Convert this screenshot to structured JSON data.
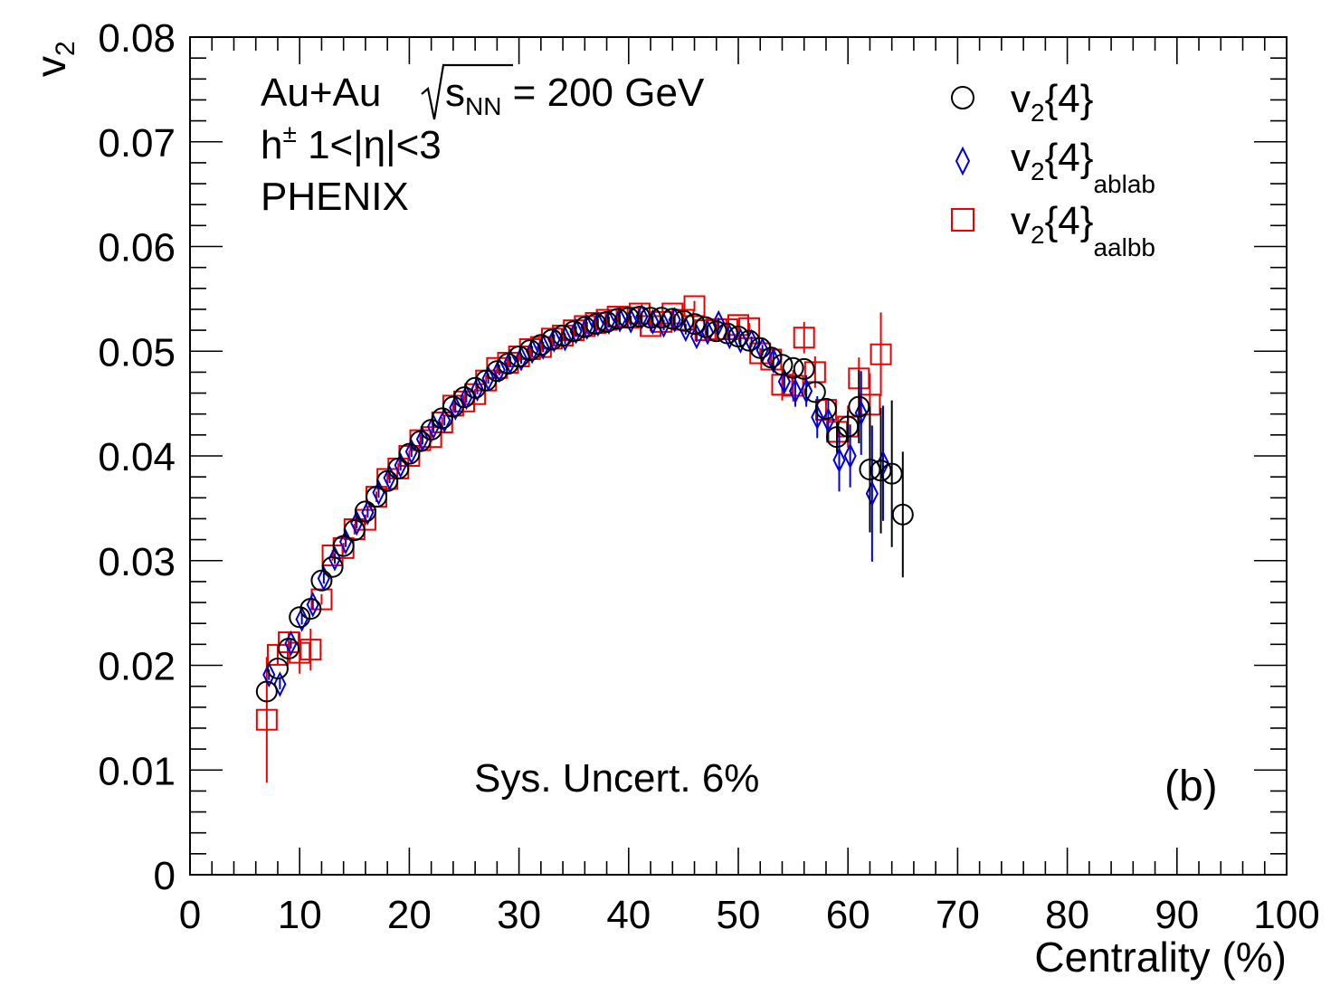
{
  "chart_data": {
    "type": "scatter",
    "xlabel": "Centrality (%)",
    "ylabel": "v",
    "ylabel_sub": "2",
    "xlim": [
      0,
      100
    ],
    "ylim": [
      0,
      0.08
    ],
    "x_ticks": [
      0,
      10,
      20,
      30,
      40,
      50,
      60,
      70,
      80,
      90,
      100
    ],
    "x_tick_labels": [
      "0",
      "10",
      "20",
      "30",
      "40",
      "50",
      "60",
      "70",
      "80",
      "90",
      "100"
    ],
    "y_ticks": [
      0,
      0.01,
      0.02,
      0.03,
      0.04,
      0.05,
      0.06,
      0.07,
      0.08
    ],
    "y_tick_labels": [
      "0",
      "0.01",
      "0.02",
      "0.03",
      "0.04",
      "0.05",
      "0.06",
      "0.07",
      "0.08"
    ],
    "grid": false,
    "legend_position": "top-right",
    "annotations": {
      "system": "Au+Au",
      "energy_sym": "s",
      "energy_sub": "NN",
      "energy_value": " = 200 GeV",
      "particle": "h",
      "particle_sup": "±",
      "eta_range": " 1<|η|<3",
      "experiment": "PHENIX",
      "sys_uncert": "Sys. Uncert. 6%",
      "panel": "(b)"
    },
    "series": [
      {
        "name": "v2{4}",
        "legend_main": "v",
        "legend_sub": "2",
        "legend_tail": "{4}",
        "legend_sub2": "",
        "marker": "circle",
        "color": "#000000",
        "points": [
          [
            7,
            0.0175,
            0.0
          ],
          [
            8,
            0.0197,
            0.0
          ],
          [
            9,
            0.0216,
            0.0
          ],
          [
            10,
            0.0246,
            0.0
          ],
          [
            11,
            0.0254,
            0.0
          ],
          [
            12,
            0.0281,
            0.0
          ],
          [
            13,
            0.0294,
            0.0
          ],
          [
            14,
            0.0314,
            0.0
          ],
          [
            15,
            0.0329,
            0.0
          ],
          [
            16,
            0.0347,
            0.0
          ],
          [
            17,
            0.0361,
            0.0
          ],
          [
            18,
            0.0376,
            0.0
          ],
          [
            19,
            0.0388,
            0.0
          ],
          [
            20,
            0.0402,
            0.0
          ],
          [
            21,
            0.0414,
            0.0
          ],
          [
            22,
            0.0425,
            0.0
          ],
          [
            23,
            0.0436,
            0.0
          ],
          [
            24,
            0.0447,
            0.0
          ],
          [
            25,
            0.0456,
            0.0
          ],
          [
            26,
            0.0465,
            0.0
          ],
          [
            27,
            0.0472,
            0.0
          ],
          [
            28,
            0.0481,
            0.0
          ],
          [
            29,
            0.0488,
            0.0
          ],
          [
            30,
            0.0495,
            0.0
          ],
          [
            31,
            0.0501,
            0.0
          ],
          [
            32,
            0.0506,
            0.0
          ],
          [
            33,
            0.0511,
            0.0
          ],
          [
            34,
            0.0515,
            0.0
          ],
          [
            35,
            0.0519,
            0.0
          ],
          [
            36,
            0.0523,
            0.0
          ],
          [
            37,
            0.0526,
            0.0
          ],
          [
            38,
            0.0528,
            0.0
          ],
          [
            39,
            0.0531,
            0.0
          ],
          [
            40,
            0.0532,
            0.0
          ],
          [
            41,
            0.0533,
            0.0
          ],
          [
            42,
            0.0532,
            0.0
          ],
          [
            43,
            0.0532,
            0.0
          ],
          [
            44,
            0.0531,
            0.0
          ],
          [
            45,
            0.0529,
            0.0
          ],
          [
            46,
            0.0526,
            0.0
          ],
          [
            47,
            0.0523,
            0.0
          ],
          [
            48,
            0.0519,
            0.0
          ],
          [
            49,
            0.0517,
            0.0
          ],
          [
            50,
            0.0514,
            0.0
          ],
          [
            51,
            0.051,
            0.0
          ],
          [
            52,
            0.0503,
            0.0
          ],
          [
            53,
            0.0494,
            0.0
          ],
          [
            54,
            0.0487,
            0.0
          ],
          [
            55,
            0.0484,
            0.0
          ],
          [
            56,
            0.0483,
            0.0
          ],
          [
            57,
            0.0461,
            0.0
          ],
          [
            58,
            0.0445,
            0.0
          ],
          [
            59,
            0.0418,
            0.0015
          ],
          [
            60,
            0.0428,
            0.0015
          ],
          [
            61,
            0.0447,
            0.0035
          ],
          [
            62,
            0.0387,
            0.006
          ],
          [
            63,
            0.0386,
            0.006
          ],
          [
            64,
            0.0383,
            0.007
          ],
          [
            65,
            0.0344,
            0.006
          ]
        ]
      },
      {
        "name": "v2{4}ablab",
        "legend_main": "v",
        "legend_sub": "2",
        "legend_tail": "{4}",
        "legend_sub2": "ablab",
        "marker": "diamond",
        "color": "#0000dd",
        "points": [
          [
            7.2,
            0.0191,
            0.0005
          ],
          [
            8.2,
            0.0182,
            0.0005
          ],
          [
            9.2,
            0.0221,
            0.0005
          ],
          [
            10.2,
            0.0244,
            0.0005
          ],
          [
            11.2,
            0.0258,
            0.0005
          ],
          [
            12.2,
            0.0283,
            0.0005
          ],
          [
            13.2,
            0.0302,
            0.0005
          ],
          [
            14.2,
            0.0318,
            0.0005
          ],
          [
            15.2,
            0.0336,
            0.0005
          ],
          [
            16.2,
            0.0346,
            0.0005
          ],
          [
            17.2,
            0.0365,
            0.0005
          ],
          [
            18.2,
            0.0379,
            0.0005
          ],
          [
            19.2,
            0.0391,
            0.0005
          ],
          [
            20.2,
            0.0404,
            0.0005
          ],
          [
            21.2,
            0.0416,
            0.0005
          ],
          [
            22.2,
            0.0428,
            0.0005
          ],
          [
            23.2,
            0.0434,
            0.0005
          ],
          [
            24.2,
            0.0446,
            0.0005
          ],
          [
            25.2,
            0.0456,
            0.0005
          ],
          [
            26.2,
            0.0464,
            0.0005
          ],
          [
            27.2,
            0.0474,
            0.0005
          ],
          [
            28.2,
            0.0482,
            0.0005
          ],
          [
            29.2,
            0.049,
            0.0005
          ],
          [
            30.2,
            0.0493,
            0.0005
          ],
          [
            31.2,
            0.05,
            0.0005
          ],
          [
            32.2,
            0.0504,
            0.0005
          ],
          [
            33.2,
            0.0511,
            0.0005
          ],
          [
            34.2,
            0.0512,
            0.0005
          ],
          [
            35.2,
            0.0519,
            0.0005
          ],
          [
            36.2,
            0.0523,
            0.0005
          ],
          [
            37.2,
            0.0526,
            0.0005
          ],
          [
            38.2,
            0.0528,
            0.0005
          ],
          [
            39.2,
            0.053,
            0.0005
          ],
          [
            40.2,
            0.0529,
            0.0005
          ],
          [
            41.2,
            0.0533,
            0.0005
          ],
          [
            42.2,
            0.0528,
            0.0005
          ],
          [
            43.2,
            0.0525,
            0.0005
          ],
          [
            44.2,
            0.053,
            0.0005
          ],
          [
            45.2,
            0.0521,
            0.0005
          ],
          [
            46.2,
            0.0514,
            0.0005
          ],
          [
            47.2,
            0.0518,
            0.0005
          ],
          [
            48.2,
            0.0527,
            0.0005
          ],
          [
            49.2,
            0.0514,
            0.0005
          ],
          [
            50.2,
            0.051,
            0.0005
          ],
          [
            51.2,
            0.0509,
            0.0005
          ],
          [
            52.2,
            0.0501,
            0.0005
          ],
          [
            53.2,
            0.0491,
            0.001
          ],
          [
            54.2,
            0.0471,
            0.001
          ],
          [
            55.2,
            0.0462,
            0.0015
          ],
          [
            56.2,
            0.0462,
            0.0015
          ],
          [
            57.2,
            0.0437,
            0.002
          ],
          [
            58.2,
            0.0434,
            0.002
          ],
          [
            59.2,
            0.0396,
            0.003
          ],
          [
            60.2,
            0.04,
            0.003
          ],
          [
            61.2,
            0.0441,
            0.004
          ],
          [
            62.2,
            0.0364,
            0.0065
          ],
          [
            63.2,
            0.0393,
            0.0055
          ]
        ]
      },
      {
        "name": "v2{4}aalbb",
        "legend_main": "v",
        "legend_sub": "2",
        "legend_tail": "{4}",
        "legend_sub2": "aalbb",
        "marker": "square",
        "color": "#ee0000",
        "points": [
          [
            7,
            0.0148,
            0.006
          ],
          [
            8,
            0.021,
            0.001
          ],
          [
            9,
            0.0222,
            0.001
          ],
          [
            10,
            0.0212,
            0.002
          ],
          [
            11,
            0.0215,
            0.002
          ],
          [
            12,
            0.0263,
            0.0005
          ],
          [
            13,
            0.0305,
            0.0005
          ],
          [
            14,
            0.0312,
            0.0005
          ],
          [
            15,
            0.033,
            0.0005
          ],
          [
            16,
            0.0339,
            0.0005
          ],
          [
            17,
            0.0361,
            0.0005
          ],
          [
            18,
            0.0378,
            0.0005
          ],
          [
            19,
            0.0388,
            0.0005
          ],
          [
            20,
            0.04,
            0.0005
          ],
          [
            21,
            0.0415,
            0.0005
          ],
          [
            22,
            0.0418,
            0.0005
          ],
          [
            23,
            0.0432,
            0.0005
          ],
          [
            24,
            0.0448,
            0.0005
          ],
          [
            25,
            0.0452,
            0.0005
          ],
          [
            26,
            0.0459,
            0.0005
          ],
          [
            27,
            0.0472,
            0.0005
          ],
          [
            28,
            0.0484,
            0.0005
          ],
          [
            29,
            0.0489,
            0.0005
          ],
          [
            30,
            0.0495,
            0.0005
          ],
          [
            31,
            0.0502,
            0.0005
          ],
          [
            32,
            0.0504,
            0.0005
          ],
          [
            33,
            0.0512,
            0.0005
          ],
          [
            34,
            0.0515,
            0.0005
          ],
          [
            35,
            0.052,
            0.0005
          ],
          [
            36,
            0.0524,
            0.0005
          ],
          [
            37,
            0.0527,
            0.0005
          ],
          [
            38,
            0.053,
            0.0005
          ],
          [
            39,
            0.0533,
            0.0005
          ],
          [
            40,
            0.0532,
            0.0005
          ],
          [
            41,
            0.0536,
            0.0005
          ],
          [
            42,
            0.0524,
            0.0005
          ],
          [
            43,
            0.0528,
            0.0005
          ],
          [
            44,
            0.0536,
            0.0005
          ],
          [
            45,
            0.053,
            0.0005
          ],
          [
            46,
            0.0543,
            0.0005
          ],
          [
            47,
            0.052,
            0.0005
          ],
          [
            48,
            0.0521,
            0.0005
          ],
          [
            49,
            0.0521,
            0.0005
          ],
          [
            50,
            0.0525,
            0.0005
          ],
          [
            51,
            0.0522,
            0.0005
          ],
          [
            52,
            0.0498,
            0.0005
          ],
          [
            53,
            0.0492,
            0.0005
          ],
          [
            54,
            0.0468,
            0.0015
          ],
          [
            55,
            0.0467,
            0.0015
          ],
          [
            56,
            0.0513,
            0.0015
          ],
          [
            57,
            0.048,
            0.0015
          ],
          [
            58,
            0.0444,
            0.001
          ],
          [
            59,
            0.0423,
            0.001
          ],
          [
            60,
            0.0428,
            0.002
          ],
          [
            61,
            0.0474,
            0.002
          ],
          [
            62,
            0.0449,
            0.003
          ],
          [
            63,
            0.0497,
            0.004
          ]
        ]
      }
    ]
  }
}
